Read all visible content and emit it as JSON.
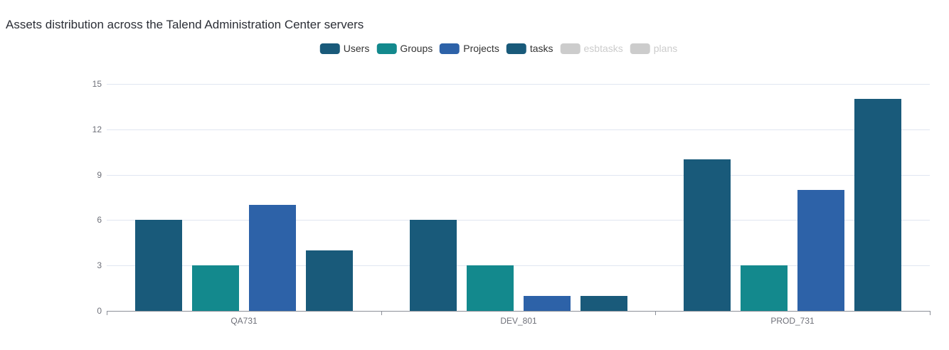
{
  "title": "Assets distribution across the Talend Administration Center servers",
  "legend": {
    "items": [
      {
        "label": "Users",
        "color": "#195a7a",
        "enabled": true
      },
      {
        "label": "Groups",
        "color": "#13898d",
        "enabled": true
      },
      {
        "label": "Projects",
        "color": "#2d62a8",
        "enabled": true
      },
      {
        "label": "tasks",
        "color": "#195a7a",
        "enabled": true
      },
      {
        "label": "esbtasks",
        "color": "#cccccc",
        "enabled": false
      },
      {
        "label": "plans",
        "color": "#cccccc",
        "enabled": false
      }
    ],
    "disabled_color": "#cccccc",
    "position": "top-center"
  },
  "chart_data": {
    "type": "bar",
    "title": "Assets distribution across the Talend Administration Center servers",
    "categories": [
      "QA731",
      "DEV_801",
      "PROD_731"
    ],
    "series": [
      {
        "name": "Users",
        "color": "#195a7a",
        "values": [
          6,
          6,
          10
        ]
      },
      {
        "name": "Groups",
        "color": "#13898d",
        "values": [
          3,
          3,
          3
        ]
      },
      {
        "name": "Projects",
        "color": "#2d62a8",
        "values": [
          7,
          1,
          8
        ]
      },
      {
        "name": "tasks",
        "color": "#195a7a",
        "values": [
          4,
          1,
          14
        ]
      }
    ],
    "disabled_series": [
      "esbtasks",
      "plans"
    ],
    "xlabel": "",
    "ylabel": "",
    "ylim": [
      0,
      15
    ],
    "yticks": [
      0,
      3,
      6,
      9,
      12,
      15
    ],
    "grid": true,
    "legend_position": "top-center",
    "colors": {
      "grid": "#e0e6f1",
      "axis": "#8c9099",
      "tick_label": "#6e7079",
      "title_text": "#2b2e36",
      "legend_text": "#333333"
    }
  }
}
